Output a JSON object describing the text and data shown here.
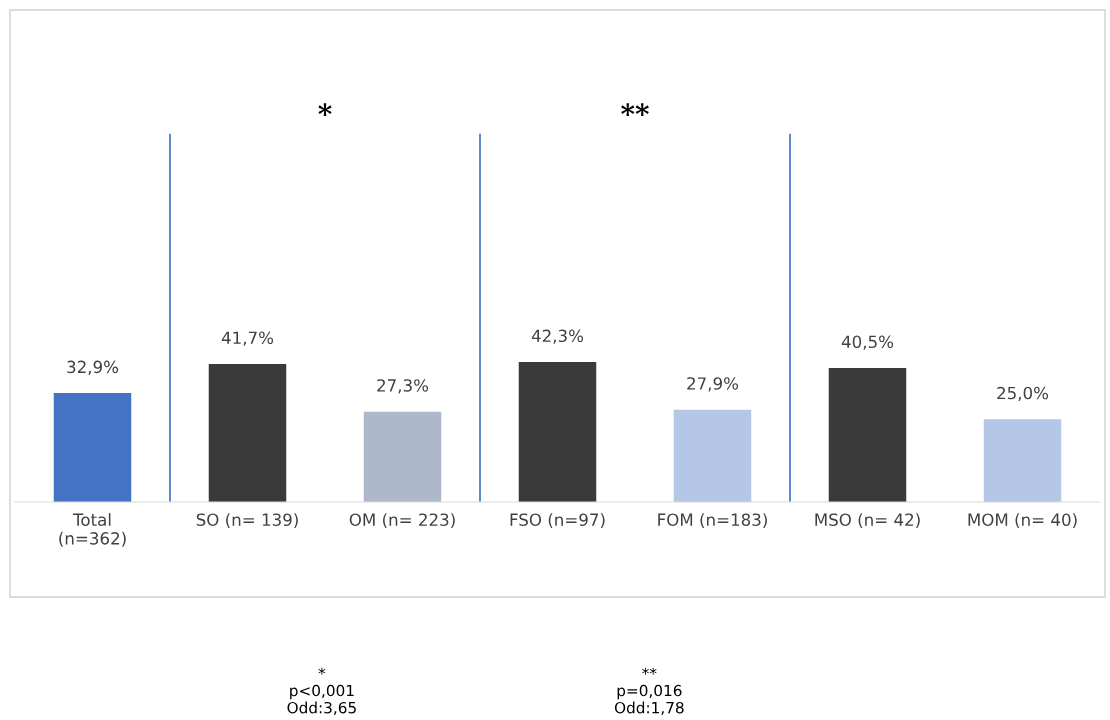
{
  "chart_data": {
    "type": "bar",
    "categories": [
      "Total\n(n=362)",
      "SO (n= 139)",
      "OM (n= 223)",
      "FSO (n=97)",
      "FOM (n=183)",
      "MSO (n= 42)",
      "MOM (n= 40)"
    ],
    "values": [
      32.9,
      41.7,
      27.3,
      42.3,
      27.9,
      40.5,
      25.0
    ],
    "value_labels": [
      "32,9%",
      "41,7%",
      "27,3%",
      "42,3%",
      "27,9%",
      "40,5%",
      "25,0%"
    ],
    "colors": [
      "#4472c4",
      "#3a3a3a",
      "#adb9ca",
      "#3a3a3a",
      "#b4c7e7",
      "#3a3a3a",
      "#b4c7e7"
    ],
    "annotations": [
      "*",
      "**",
      "*\np<0,001\nOdd:3,65",
      "**\np=0,016\nOdd:1,78"
    ],
    "grid": false,
    "legend": false
  }
}
